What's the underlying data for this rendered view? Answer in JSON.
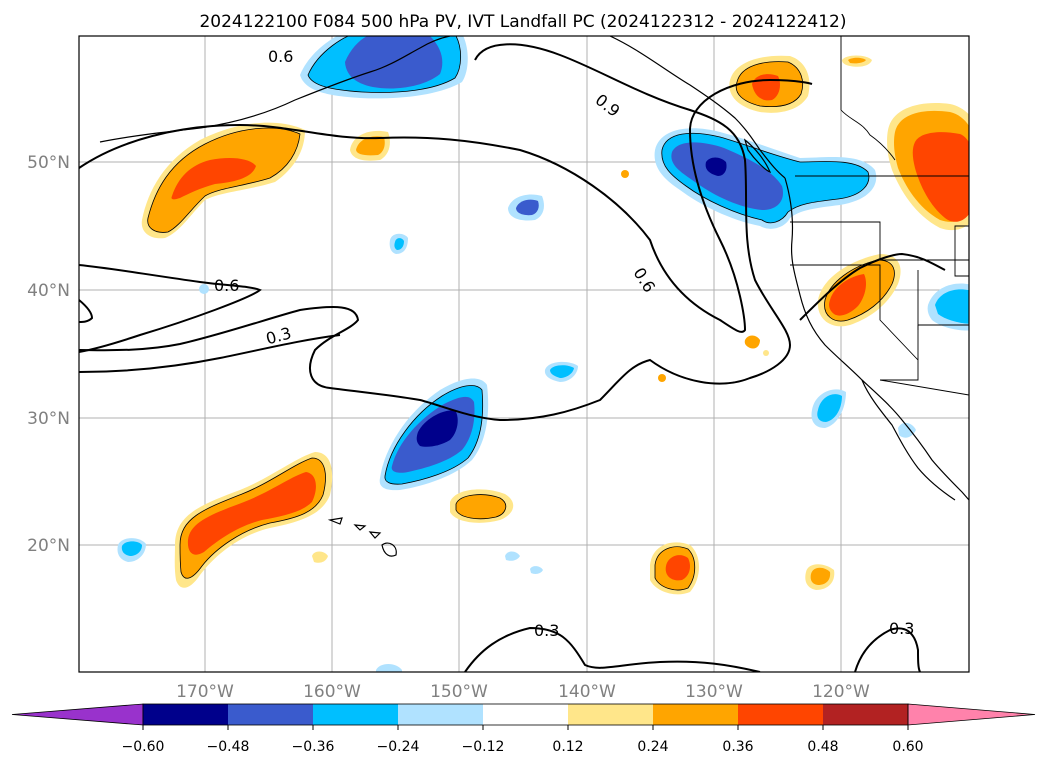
{
  "title": "2024122100 F084 500 hPa PV, IVT Landfall PC (2024122312 - 2024122412)",
  "lat_labels": [
    "50°N",
    "40°N",
    "30°N",
    "20°N"
  ],
  "lon_labels": [
    "170°W",
    "160°W",
    "150°W",
    "140°W",
    "130°W",
    "120°W"
  ],
  "contour_labels": [
    "0.6",
    "0.9",
    "0.6",
    "0.6",
    "0.3",
    "0.3",
    "0.3"
  ],
  "colorbar": {
    "ticks": [
      "−0.60",
      "−0.48",
      "−0.36",
      "−0.24",
      "−0.12",
      "0.12",
      "0.24",
      "0.36",
      "0.48",
      "0.60"
    ],
    "colors": [
      "#9932cc",
      "#00008b",
      "#3a5bcd",
      "#00bfff",
      "#b0e2ff",
      "#ffffff",
      "#ffe68a",
      "#ffa500",
      "#ff4500",
      "#b22222",
      "#ff82ab"
    ]
  },
  "colors": {
    "neg_lvl4": "#00008b",
    "neg_lvl3": "#3a5bcd",
    "neg_lvl2": "#00bfff",
    "neg_lvl1": "#b0e2ff",
    "pos_lvl1": "#ffe68a",
    "pos_lvl2": "#ffa500",
    "pos_lvl3": "#ff4500"
  }
}
